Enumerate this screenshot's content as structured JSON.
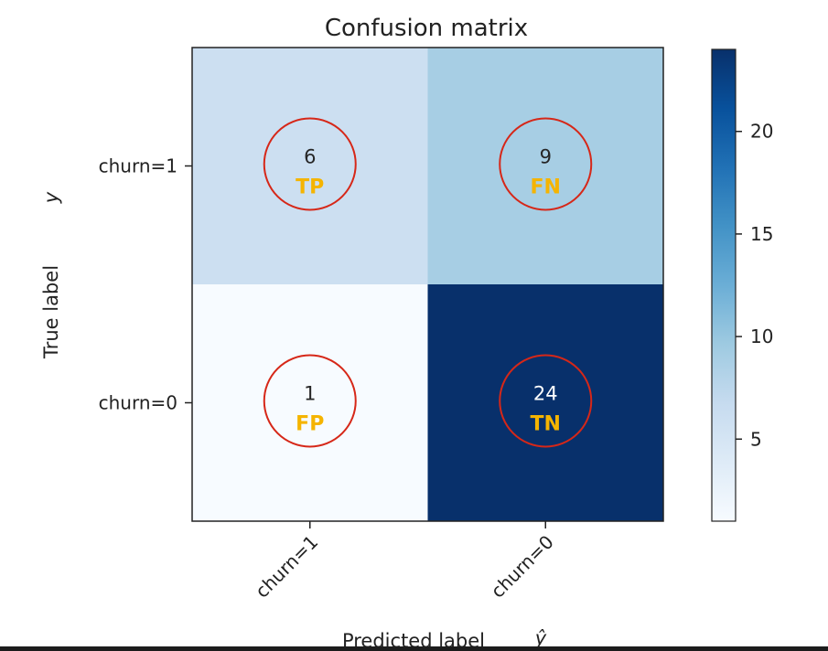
{
  "chart_data": {
    "type": "heatmap",
    "title": "Confusion matrix",
    "xlabel": "Predicted label",
    "xlabel_symbol": "ŷ",
    "ylabel": "True label",
    "ylabel_symbol": "y",
    "x_categories": [
      "churn=1",
      "churn=0"
    ],
    "y_categories": [
      "churn=1",
      "churn=0"
    ],
    "values": [
      [
        6,
        9
      ],
      [
        1,
        24
      ]
    ],
    "cell_tags": [
      [
        "TP",
        "FN"
      ],
      [
        "FP",
        "TN"
      ]
    ],
    "colormap": "Blues",
    "colorbar": {
      "range": [
        1,
        24
      ],
      "ticks": [
        5,
        10,
        15,
        20
      ]
    },
    "colors": {
      "annotation_circle": "#d62718",
      "tag": "#f5b400"
    }
  }
}
